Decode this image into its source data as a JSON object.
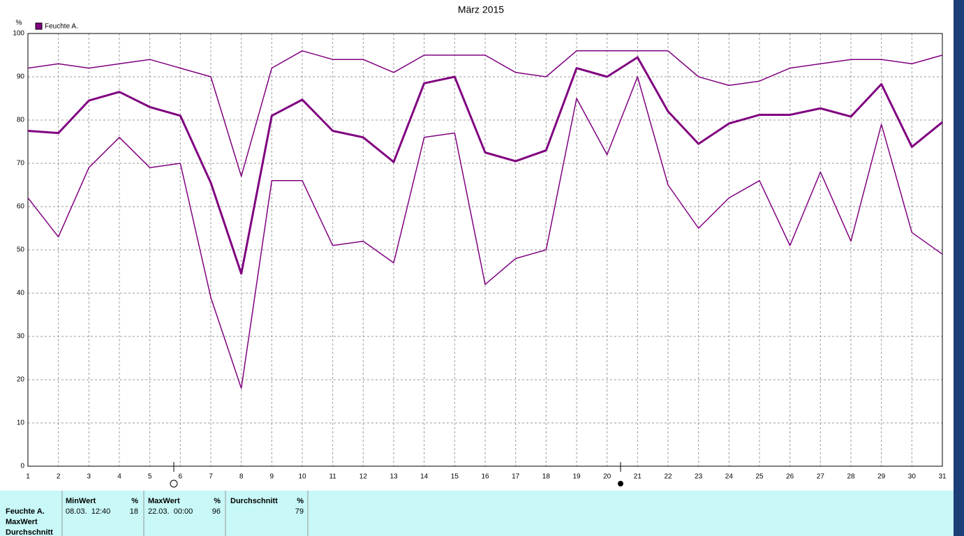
{
  "chart_data": {
    "type": "line",
    "title": "März 2015",
    "y_unit": "%",
    "legend_label": "Feuchte A.",
    "legend_color": "#800080",
    "x": [
      1,
      2,
      3,
      4,
      5,
      6,
      7,
      8,
      9,
      10,
      11,
      12,
      13,
      14,
      15,
      16,
      17,
      18,
      19,
      20,
      21,
      22,
      23,
      24,
      25,
      26,
      27,
      28,
      29,
      30,
      31
    ],
    "xlim": [
      1,
      31
    ],
    "xticks": [
      1,
      2,
      3,
      4,
      5,
      6,
      7,
      8,
      9,
      10,
      11,
      12,
      13,
      14,
      15,
      16,
      17,
      18,
      19,
      20,
      21,
      22,
      23,
      24,
      25,
      26,
      27,
      28,
      29,
      30,
      31
    ],
    "ylim": [
      0,
      100
    ],
    "yticks": [
      0,
      10,
      20,
      30,
      40,
      50,
      60,
      70,
      80,
      90,
      100
    ],
    "grid": true,
    "series": [
      {
        "color": "#800080",
        "line_width": 1.5,
        "values": [
          92,
          93,
          92,
          93,
          94,
          92,
          90,
          67,
          92,
          96,
          94,
          94,
          91,
          95,
          95,
          95,
          91,
          90,
          96,
          96,
          96,
          96,
          90,
          88,
          89,
          92,
          93,
          94,
          94,
          93,
          95
        ]
      },
      {
        "color": "#800080",
        "line_width": 3,
        "values": [
          77.5,
          77,
          84.5,
          86.5,
          83,
          81,
          65.5,
          44.5,
          81,
          84.7,
          77.5,
          76,
          70.3,
          88.5,
          90,
          72.5,
          70.5,
          73,
          92,
          90,
          94.5,
          82,
          74.5,
          79.2,
          81.2,
          81.2,
          82.7,
          80.8,
          88.3,
          73.8,
          79.5
        ]
      },
      {
        "color": "#800080",
        "line_width": 1.5,
        "values": [
          62,
          53,
          69,
          76,
          69,
          70,
          39,
          18,
          66,
          66,
          51,
          52,
          47,
          76,
          77,
          42,
          48,
          50,
          85,
          72,
          90,
          65,
          55,
          62,
          66,
          51,
          68,
          52,
          79,
          54,
          49
        ]
      }
    ]
  },
  "panel": {
    "row_labels": [
      "Feuchte A.",
      "MaxWert",
      "Durchschnitt"
    ],
    "columns": [
      {
        "header": "MinWert",
        "unit": "%",
        "time": "08.03.  12:40",
        "value": 18
      },
      {
        "header": "MaxWert",
        "unit": "%",
        "time": "22.03.  00:00",
        "value": 96
      },
      {
        "header": "Durchschnitt",
        "unit": "%",
        "time": "",
        "value": 79
      }
    ]
  }
}
